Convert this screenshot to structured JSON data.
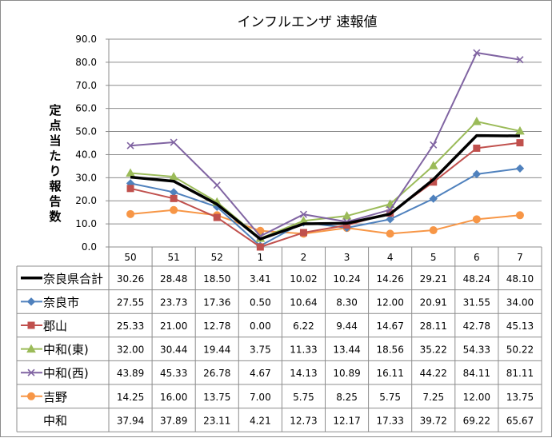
{
  "chart_data": {
    "type": "line",
    "title": "インフルエンザ 速報値",
    "ylabel": "定点当たり報告数",
    "xlabel": "",
    "ylim": [
      0,
      90
    ],
    "y_ticks": [
      "0.0",
      "10.0",
      "20.0",
      "30.0",
      "40.0",
      "50.0",
      "60.0",
      "70.0",
      "80.0",
      "90.0"
    ],
    "categories": [
      "50",
      "51",
      "52",
      "1",
      "2",
      "3",
      "4",
      "5",
      "6",
      "7"
    ],
    "grid": true,
    "series": [
      {
        "name": "奈良県合計",
        "color": "#000000",
        "marker": "none",
        "values": [
          30.26,
          28.48,
          18.5,
          3.41,
          10.02,
          10.24,
          14.26,
          29.21,
          48.24,
          48.1
        ],
        "labels": [
          "30.26",
          "28.48",
          "18.50",
          "3.41",
          "10.02",
          "10.24",
          "14.26",
          "29.21",
          "48.24",
          "48.10"
        ]
      },
      {
        "name": "奈良市",
        "color": "#4f81bd",
        "marker": "diamond",
        "values": [
          27.55,
          23.73,
          17.36,
          0.5,
          10.64,
          8.3,
          12.0,
          20.91,
          31.55,
          34.0
        ],
        "labels": [
          "27.55",
          "23.73",
          "17.36",
          "0.50",
          "10.64",
          "8.30",
          "12.00",
          "20.91",
          "31.55",
          "34.00"
        ]
      },
      {
        "name": "郡山",
        "color": "#c0504d",
        "marker": "square",
        "values": [
          25.33,
          21.0,
          12.78,
          0.0,
          6.22,
          9.44,
          14.67,
          28.11,
          42.78,
          45.13
        ],
        "labels": [
          "25.33",
          "21.00",
          "12.78",
          "0.00",
          "6.22",
          "9.44",
          "14.67",
          "28.11",
          "42.78",
          "45.13"
        ]
      },
      {
        "name": "中和(東)",
        "color": "#9bbb59",
        "marker": "triangle",
        "values": [
          32.0,
          30.44,
          19.44,
          3.75,
          11.33,
          13.44,
          18.56,
          35.22,
          54.33,
          50.22
        ],
        "labels": [
          "32.00",
          "30.44",
          "19.44",
          "3.75",
          "11.33",
          "13.44",
          "18.56",
          "35.22",
          "54.33",
          "50.22"
        ]
      },
      {
        "name": "中和(西)",
        "color": "#8064a2",
        "marker": "x",
        "values": [
          43.89,
          45.33,
          26.78,
          4.67,
          14.13,
          10.89,
          16.11,
          44.22,
          84.11,
          81.11
        ],
        "labels": [
          "43.89",
          "45.33",
          "26.78",
          "4.67",
          "14.13",
          "10.89",
          "16.11",
          "44.22",
          "84.11",
          "81.11"
        ]
      },
      {
        "name": "吉野",
        "color": "#f79646",
        "marker": "circle",
        "values": [
          14.25,
          16.0,
          13.75,
          7.0,
          5.75,
          8.25,
          5.75,
          7.25,
          12.0,
          13.75
        ],
        "labels": [
          "14.25",
          "16.00",
          "13.75",
          "7.00",
          "5.75",
          "8.25",
          "5.75",
          "7.25",
          "12.00",
          "13.75"
        ]
      },
      {
        "name": "中和",
        "color": "none",
        "marker": "none",
        "values": [
          37.94,
          37.89,
          23.11,
          4.21,
          12.73,
          12.17,
          17.33,
          39.72,
          69.22,
          65.67
        ],
        "labels": [
          "37.94",
          "37.89",
          "23.11",
          "4.21",
          "12.73",
          "12.17",
          "17.33",
          "39.72",
          "69.22",
          "65.67"
        ]
      }
    ]
  }
}
